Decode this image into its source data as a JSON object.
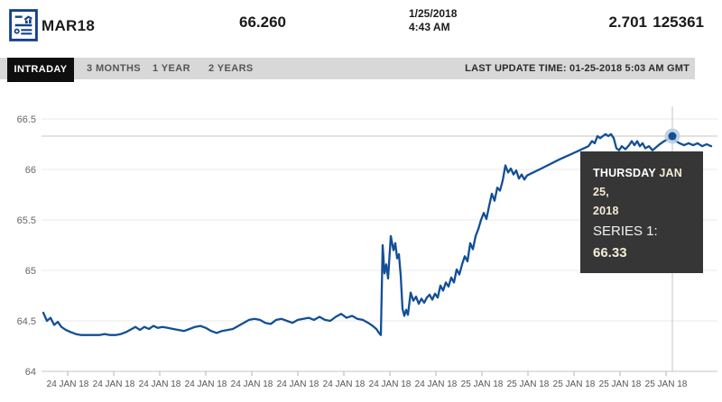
{
  "header": {
    "symbol": "MAR18",
    "price": "66.260",
    "date": "1/25/2018",
    "time": "4:43 AM",
    "change": "2.701",
    "volume": "125361",
    "icon": "report-document-chart-icon"
  },
  "tabs": {
    "items": [
      {
        "label": "INTRADAY",
        "active": true
      },
      {
        "label": "3 MONTHS",
        "active": false
      },
      {
        "label": "1 YEAR",
        "active": false
      },
      {
        "label": "2 YEARS",
        "active": false
      }
    ],
    "last_update": "LAST UPDATE TIME: 01-25-2018 5:03 AM GMT"
  },
  "tooltip": {
    "day_label": "THURSDAY",
    "date_label": "JAN 25,",
    "year_label": "2018",
    "series_label": "SERIES 1:",
    "series_value": "66.33"
  },
  "colors": {
    "line": "#124f96",
    "marker_halo": "#b7cce2",
    "grid": "#e8e8e8",
    "axis": "#c6c6c6",
    "crosshair": "#c4c4c4",
    "tick": "#a9b6c2",
    "y_label": "#666666",
    "x_label": "#555555",
    "tab_bg": "#d8d8d8",
    "tab_active_bg": "#0e0e0e",
    "tooltip_bg": "#363636",
    "icon_blue": "#16418c"
  },
  "chart_data": {
    "type": "line",
    "title": "",
    "xlabel": "",
    "ylabel": "",
    "ylim": [
      64,
      66.5
    ],
    "grid": true,
    "legend_position": "none",
    "y_ticks": [
      {
        "v": 66.5,
        "label": "66.5"
      },
      {
        "v": 66,
        "label": "66"
      },
      {
        "v": 65.5,
        "label": "65.5"
      },
      {
        "v": 65,
        "label": "65"
      },
      {
        "v": 64.5,
        "label": "64.5"
      },
      {
        "v": 64,
        "label": "64"
      }
    ],
    "x_tick_labels": [
      "24 JAN 18",
      "24 JAN 18",
      "24 JAN 18",
      "24 JAN 18",
      "24 JAN 18",
      "24 JAN 18",
      "24 JAN 18",
      "24 JAN 18",
      "24 JAN 18",
      "25 JAN 18",
      "25 JAN 18",
      "25 JAN 18",
      "25 JAN 18",
      "25 JAN 18"
    ],
    "series": [
      {
        "name": "Series 1",
        "points": [
          [
            48,
            64.58
          ],
          [
            52,
            64.5
          ],
          [
            56,
            64.53
          ],
          [
            60,
            64.46
          ],
          [
            64,
            64.49
          ],
          [
            68,
            64.44
          ],
          [
            73,
            64.41
          ],
          [
            78,
            64.39
          ],
          [
            84,
            64.37
          ],
          [
            90,
            64.36
          ],
          [
            97,
            64.36
          ],
          [
            104,
            64.36
          ],
          [
            110,
            64.36
          ],
          [
            116,
            64.37
          ],
          [
            122,
            64.36
          ],
          [
            128,
            64.36
          ],
          [
            134,
            64.37
          ],
          [
            140,
            64.39
          ],
          [
            146,
            64.42
          ],
          [
            150,
            64.44
          ],
          [
            155,
            64.41
          ],
          [
            160,
            64.44
          ],
          [
            165,
            64.42
          ],
          [
            170,
            64.45
          ],
          [
            175,
            64.43
          ],
          [
            180,
            64.44
          ],
          [
            186,
            64.43
          ],
          [
            192,
            64.42
          ],
          [
            198,
            64.41
          ],
          [
            204,
            64.4
          ],
          [
            210,
            64.42
          ],
          [
            216,
            64.44
          ],
          [
            222,
            64.45
          ],
          [
            228,
            64.43
          ],
          [
            234,
            64.4
          ],
          [
            240,
            64.38
          ],
          [
            246,
            64.4
          ],
          [
            252,
            64.41
          ],
          [
            258,
            64.42
          ],
          [
            264,
            64.45
          ],
          [
            270,
            64.48
          ],
          [
            276,
            64.51
          ],
          [
            282,
            64.52
          ],
          [
            288,
            64.51
          ],
          [
            294,
            64.48
          ],
          [
            300,
            64.47
          ],
          [
            306,
            64.51
          ],
          [
            312,
            64.52
          ],
          [
            318,
            64.5
          ],
          [
            324,
            64.48
          ],
          [
            330,
            64.51
          ],
          [
            336,
            64.52
          ],
          [
            342,
            64.53
          ],
          [
            348,
            64.51
          ],
          [
            354,
            64.54
          ],
          [
            360,
            64.51
          ],
          [
            366,
            64.5
          ],
          [
            372,
            64.54
          ],
          [
            378,
            64.57
          ],
          [
            384,
            64.53
          ],
          [
            390,
            64.55
          ],
          [
            396,
            64.52
          ],
          [
            402,
            64.51
          ],
          [
            408,
            64.48
          ],
          [
            413,
            64.45
          ],
          [
            417,
            64.42
          ],
          [
            420,
            64.38
          ],
          [
            422,
            64.36
          ],
          [
            424,
            65.25
          ],
          [
            426,
            64.97
          ],
          [
            428,
            65.06
          ],
          [
            430,
            64.92
          ],
          [
            433,
            65.34
          ],
          [
            436,
            65.2
          ],
          [
            438,
            65.27
          ],
          [
            440,
            65.12
          ],
          [
            442,
            65.16
          ],
          [
            444,
            64.95
          ],
          [
            446,
            64.62
          ],
          [
            448,
            64.55
          ],
          [
            450,
            64.61
          ],
          [
            452,
            64.56
          ],
          [
            455,
            64.78
          ],
          [
            458,
            64.7
          ],
          [
            461,
            64.74
          ],
          [
            464,
            64.67
          ],
          [
            467,
            64.72
          ],
          [
            470,
            64.68
          ],
          [
            473,
            64.73
          ],
          [
            476,
            64.76
          ],
          [
            479,
            64.71
          ],
          [
            482,
            64.77
          ],
          [
            485,
            64.73
          ],
          [
            488,
            64.85
          ],
          [
            491,
            64.8
          ],
          [
            494,
            64.88
          ],
          [
            497,
            64.84
          ],
          [
            500,
            64.93
          ],
          [
            503,
            64.88
          ],
          [
            506,
            65.01
          ],
          [
            509,
            64.96
          ],
          [
            512,
            65.06
          ],
          [
            515,
            65.14
          ],
          [
            518,
            65.09
          ],
          [
            521,
            65.27
          ],
          [
            524,
            65.21
          ],
          [
            527,
            65.34
          ],
          [
            530,
            65.41
          ],
          [
            533,
            65.5
          ],
          [
            536,
            65.57
          ],
          [
            539,
            65.51
          ],
          [
            542,
            65.64
          ],
          [
            545,
            65.76
          ],
          [
            548,
            65.69
          ],
          [
            551,
            65.82
          ],
          [
            554,
            65.79
          ],
          [
            557,
            65.89
          ],
          [
            560,
            66.04
          ],
          [
            563,
            65.97
          ],
          [
            566,
            66.01
          ],
          [
            569,
            65.95
          ],
          [
            572,
            65.99
          ],
          [
            575,
            65.91
          ],
          [
            578,
            65.95
          ],
          [
            581,
            65.9
          ],
          [
            584,
            65.94
          ],
          [
            600,
            66.01
          ],
          [
            620,
            66.1
          ],
          [
            640,
            66.18
          ],
          [
            652,
            66.23
          ],
          [
            656,
            66.28
          ],
          [
            659,
            66.26
          ],
          [
            662,
            66.33
          ],
          [
            665,
            66.31
          ],
          [
            668,
            66.33
          ],
          [
            671,
            66.35
          ],
          [
            674,
            66.33
          ],
          [
            677,
            66.35
          ],
          [
            680,
            66.31
          ],
          [
            683,
            66.21
          ],
          [
            686,
            66.19
          ],
          [
            689,
            66.23
          ],
          [
            693,
            66.2
          ],
          [
            697,
            66.24
          ],
          [
            700,
            66.28
          ],
          [
            703,
            66.24
          ],
          [
            706,
            66.28
          ],
          [
            709,
            66.23
          ],
          [
            712,
            66.26
          ],
          [
            715,
            66.21
          ],
          [
            719,
            66.23
          ],
          [
            723,
            66.19
          ],
          [
            727,
            66.22
          ],
          [
            731,
            66.25
          ],
          [
            736,
            66.28
          ],
          [
            740,
            66.3
          ],
          [
            745,
            66.33
          ],
          [
            749,
            66.28
          ],
          [
            753,
            66.26
          ],
          [
            758,
            66.24
          ],
          [
            763,
            66.26
          ],
          [
            768,
            66.24
          ],
          [
            773,
            66.26
          ],
          [
            778,
            66.23
          ],
          [
            783,
            66.25
          ],
          [
            788,
            66.23
          ]
        ]
      }
    ],
    "crosshair": {
      "x": 745,
      "value": 66.33
    }
  }
}
